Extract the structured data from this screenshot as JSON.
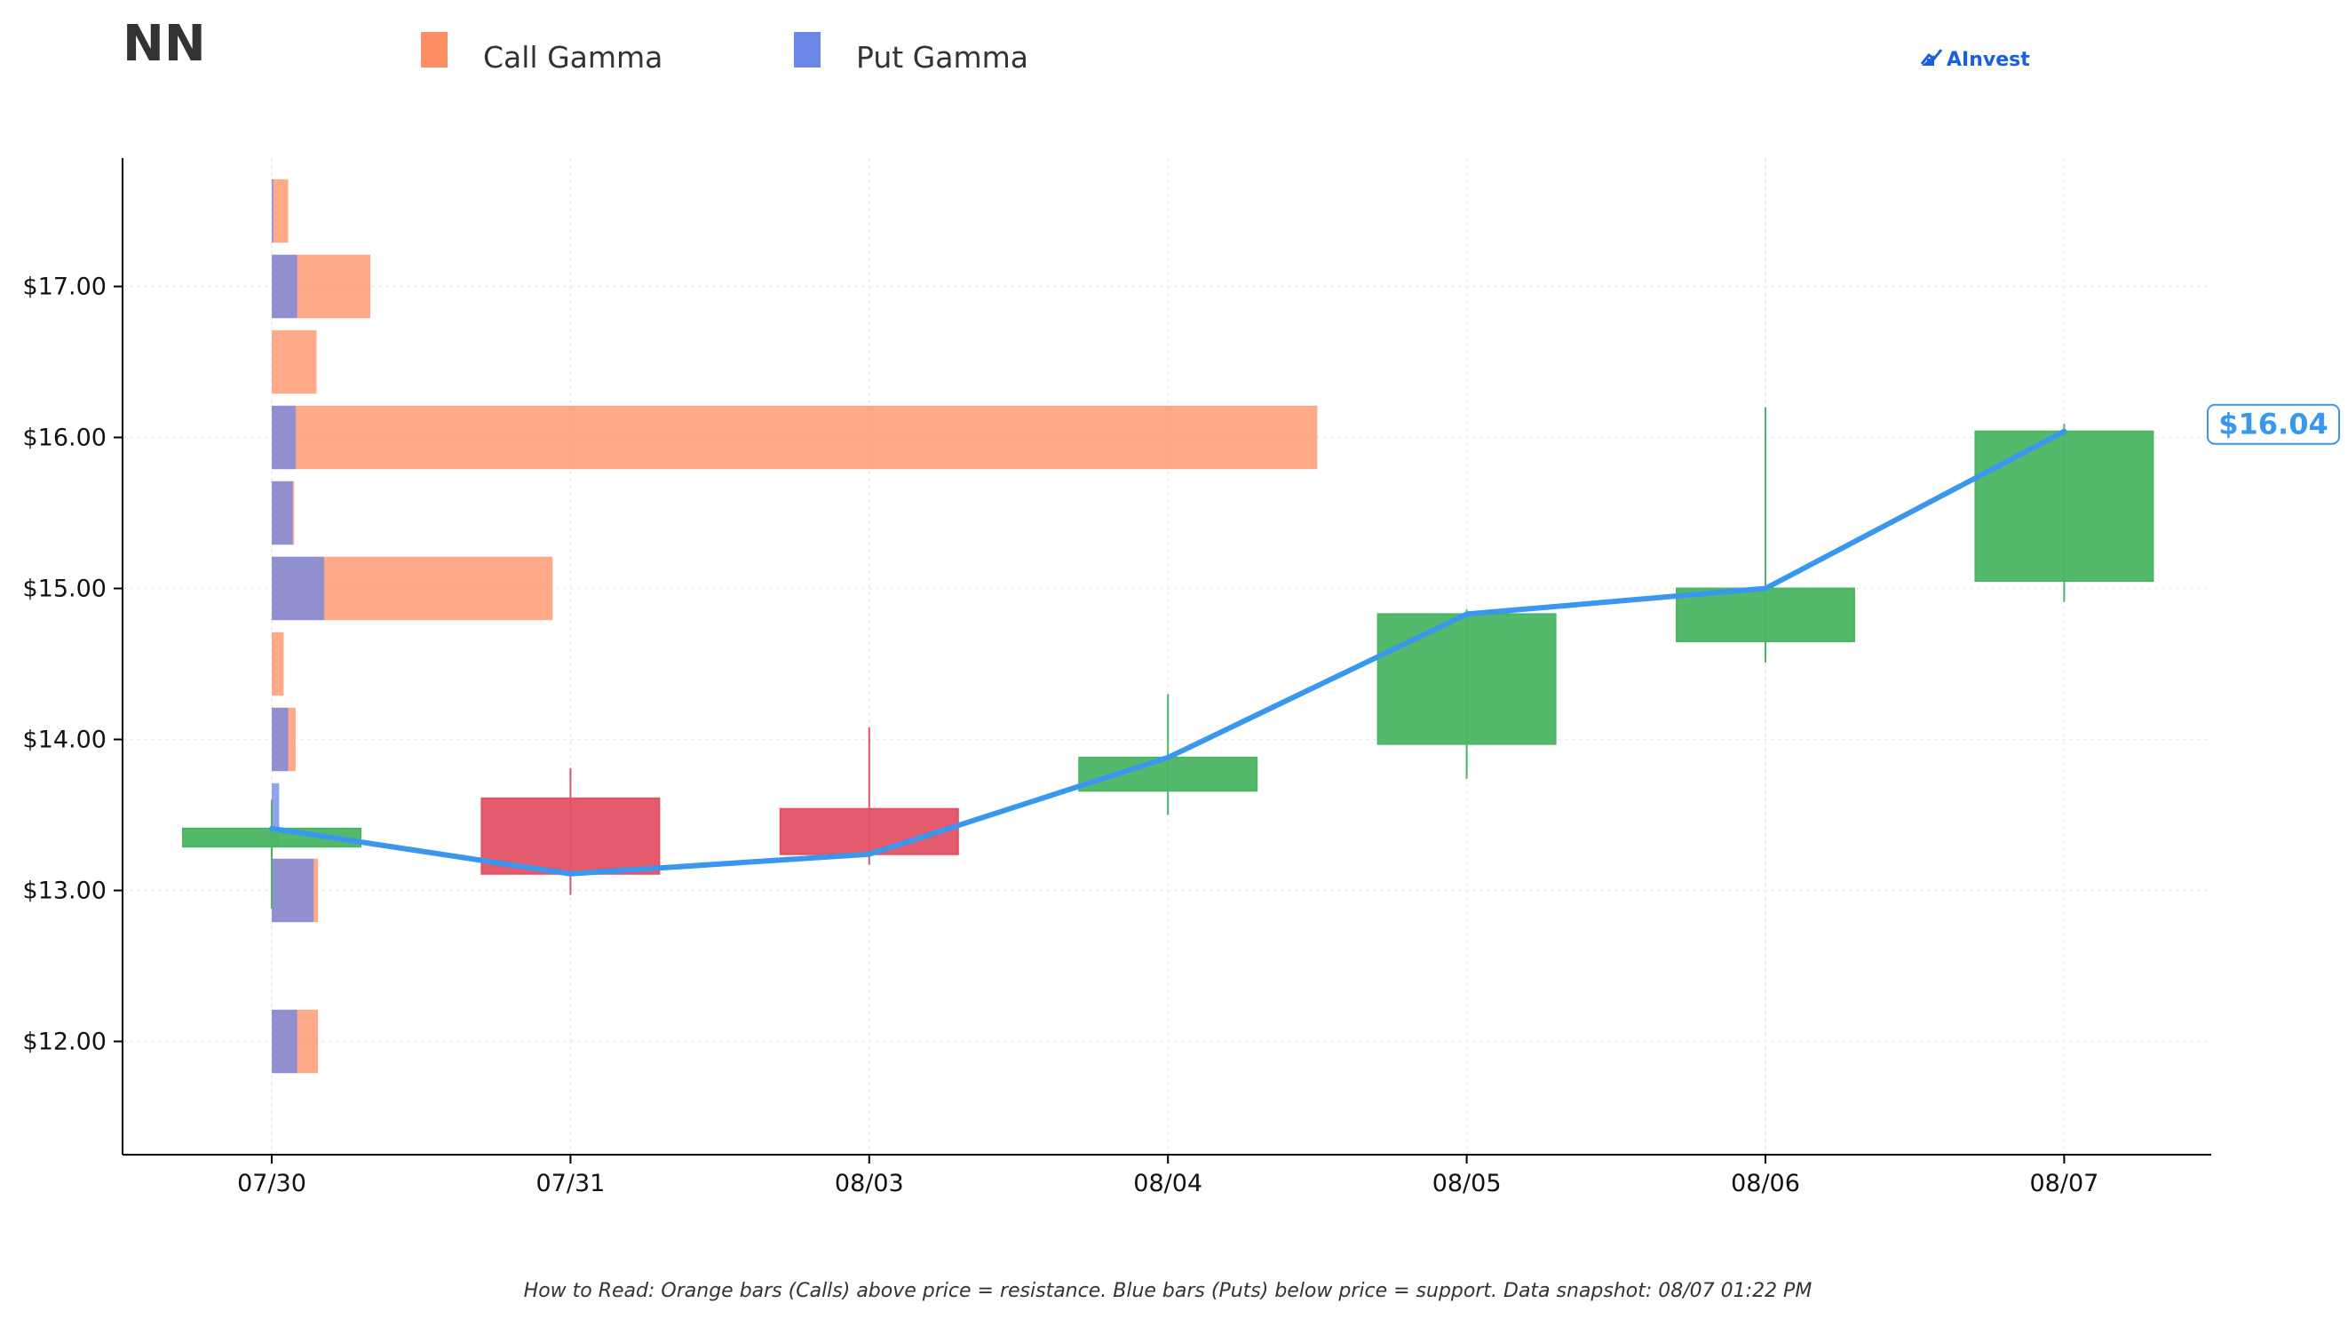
{
  "ticker": "NN",
  "brand": {
    "name": "AInvest",
    "color": "#1a5fe0",
    "icon": "chart-logo-icon"
  },
  "footnote": "How to Read: Orange bars (Calls) above price = resistance. Blue bars (Puts) below price = support. Data snapshot: 08/07 01:22 PM",
  "colors": {
    "call": "#fd8d62",
    "put": "#6b87e8",
    "up": "#4cb563",
    "down": "#e25265",
    "line": "#3a97ee",
    "grid": "#eeeeee"
  },
  "chart_data": {
    "type": "candlestick",
    "legend": {
      "placement": "top-left",
      "entries": [
        "Call Gamma",
        "Put Gamma"
      ]
    },
    "grid": true,
    "x": {
      "categories": [
        "07/30",
        "07/31",
        "08/03",
        "08/04",
        "08/05",
        "08/06",
        "08/07"
      ]
    },
    "y": {
      "range": [
        11.25,
        17.85
      ],
      "ticks": [
        12.0,
        13.0,
        14.0,
        15.0,
        16.0,
        17.0
      ],
      "tick_labels": [
        "$12.00",
        "$13.00",
        "$14.00",
        "$15.00",
        "$16.00",
        "$17.00"
      ]
    },
    "candles": [
      {
        "date": "07/30",
        "open": 13.29,
        "high": 13.6,
        "low": 12.88,
        "close": 13.41
      },
      {
        "date": "07/31",
        "open": 13.61,
        "high": 13.81,
        "low": 12.97,
        "close": 13.11
      },
      {
        "date": "08/03",
        "open": 13.54,
        "high": 14.08,
        "low": 13.17,
        "close": 13.24
      },
      {
        "date": "08/04",
        "open": 13.66,
        "high": 14.3,
        "low": 13.5,
        "close": 13.88
      },
      {
        "date": "08/05",
        "open": 13.97,
        "high": 14.86,
        "low": 13.74,
        "close": 14.83
      },
      {
        "date": "08/06",
        "open": 14.65,
        "high": 16.2,
        "low": 14.51,
        "close": 15.0
      },
      {
        "date": "08/07",
        "open": 15.05,
        "high": 16.09,
        "low": 14.91,
        "close": 16.04
      }
    ],
    "price_line": {
      "x": [
        "07/30",
        "07/31",
        "08/03",
        "08/04",
        "08/05",
        "08/06",
        "08/07"
      ],
      "y": [
        13.41,
        13.11,
        13.24,
        13.88,
        14.83,
        15.0,
        16.04
      ]
    },
    "last_price_label": "$16.04",
    "gamma": {
      "bar_half_height": 0.21,
      "x_scale": "fraction of one date-column width",
      "strikes": [
        17.5,
        17.0,
        16.5,
        16.0,
        15.5,
        15.0,
        14.5,
        14.0,
        13.5,
        13.0,
        12.0
      ],
      "call_gamma": [
        0.055,
        0.33,
        0.15,
        3.5,
        0.075,
        0.94,
        0.04,
        0.08,
        0.0,
        0.155,
        0.155
      ],
      "put_gamma": [
        0.005,
        0.085,
        0.0,
        0.08,
        0.07,
        0.175,
        0.0,
        0.055,
        0.025,
        0.14,
        0.085
      ]
    }
  }
}
